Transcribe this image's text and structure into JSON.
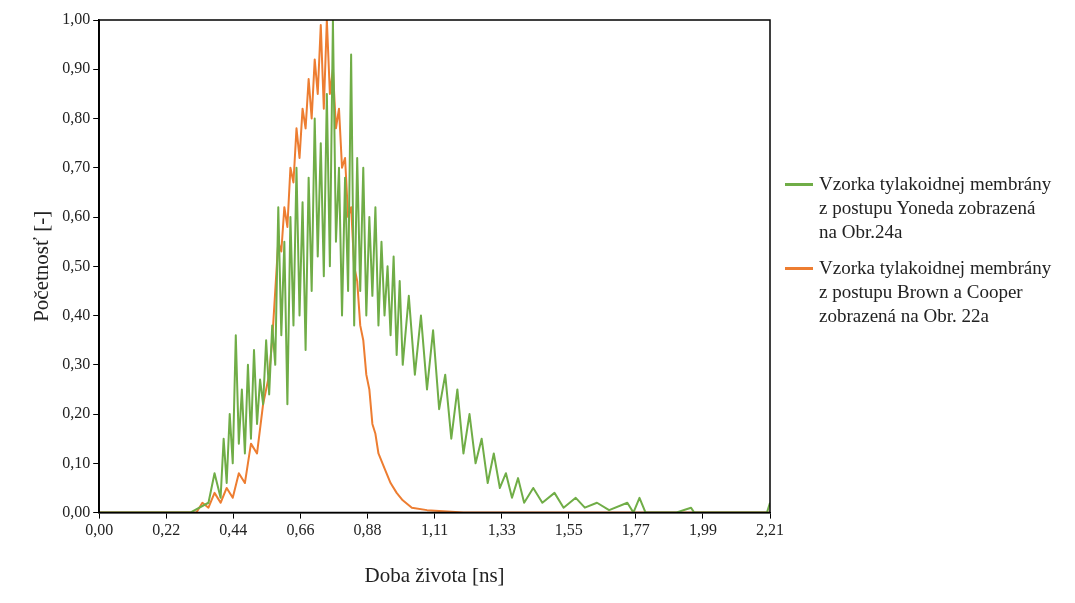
{
  "chart_data": {
    "type": "line",
    "xlabel": "Doba života [ns]",
    "ylabel": "Početnosť [-]",
    "legend": "right",
    "grid": false,
    "marker": "none",
    "line_style": "solid",
    "xlim": [
      0,
      2.21
    ],
    "xticks": [
      {
        "value": 0,
        "label": "0,00"
      },
      {
        "value": 0.221,
        "label": "0,22"
      },
      {
        "value": 0.442,
        "label": "0,44"
      },
      {
        "value": 0.663,
        "label": "0,66"
      },
      {
        "value": 0.884,
        "label": "0,88"
      },
      {
        "value": 1.105,
        "label": "1,11"
      },
      {
        "value": 1.326,
        "label": "1,33"
      },
      {
        "value": 1.547,
        "label": "1,55"
      },
      {
        "value": 1.768,
        "label": "1,77"
      },
      {
        "value": 1.989,
        "label": "1,99"
      },
      {
        "value": 2.21,
        "label": "2,21"
      }
    ],
    "ylim": [
      0,
      1
    ],
    "yticks": [
      {
        "value": 0,
        "label": "0,00"
      },
      {
        "value": 0.1,
        "label": "0,10"
      },
      {
        "value": 0.2,
        "label": "0,20"
      },
      {
        "value": 0.3,
        "label": "0,30"
      },
      {
        "value": 0.4,
        "label": "0,40"
      },
      {
        "value": 0.5,
        "label": "0,50"
      },
      {
        "value": 0.6,
        "label": "0,60"
      },
      {
        "value": 0.7,
        "label": "0,70"
      },
      {
        "value": 0.8,
        "label": "0,80"
      },
      {
        "value": 0.9,
        "label": "0,90"
      },
      {
        "value": 1,
        "label": "1,00"
      }
    ],
    "series": [
      {
        "name": "Vzorka tylakoidnej membrány z postupu Yoneda zobrazená na Obr.24a",
        "color": "#70ad47",
        "x": [
          0,
          0.3,
          0.36,
          0.38,
          0.4,
          0.41,
          0.42,
          0.43,
          0.44,
          0.45,
          0.46,
          0.47,
          0.48,
          0.49,
          0.5,
          0.51,
          0.52,
          0.53,
          0.54,
          0.55,
          0.56,
          0.57,
          0.58,
          0.59,
          0.6,
          0.61,
          0.62,
          0.63,
          0.64,
          0.65,
          0.66,
          0.67,
          0.68,
          0.69,
          0.7,
          0.71,
          0.72,
          0.73,
          0.74,
          0.75,
          0.76,
          0.77,
          0.78,
          0.79,
          0.8,
          0.81,
          0.82,
          0.83,
          0.84,
          0.85,
          0.86,
          0.87,
          0.88,
          0.89,
          0.9,
          0.91,
          0.92,
          0.93,
          0.94,
          0.95,
          0.96,
          0.97,
          0.98,
          0.99,
          1.0,
          1.02,
          1.04,
          1.06,
          1.08,
          1.1,
          1.12,
          1.14,
          1.16,
          1.18,
          1.2,
          1.22,
          1.24,
          1.26,
          1.28,
          1.3,
          1.32,
          1.34,
          1.36,
          1.38,
          1.4,
          1.43,
          1.46,
          1.5,
          1.53,
          1.57,
          1.6,
          1.64,
          1.68,
          1.74,
          1.76,
          1.78,
          1.8,
          1.9,
          1.95,
          1.96,
          2.2,
          2.21
        ],
        "values": [
          0,
          0,
          0.02,
          0.08,
          0.03,
          0.15,
          0.06,
          0.2,
          0.1,
          0.36,
          0.14,
          0.25,
          0.12,
          0.3,
          0.15,
          0.33,
          0.18,
          0.27,
          0.22,
          0.35,
          0.24,
          0.38,
          0.3,
          0.62,
          0.36,
          0.55,
          0.22,
          0.6,
          0.38,
          0.7,
          0.4,
          0.63,
          0.33,
          0.68,
          0.45,
          0.8,
          0.52,
          0.75,
          0.48,
          0.85,
          0.5,
          1.0,
          0.55,
          0.7,
          0.4,
          0.68,
          0.45,
          0.93,
          0.38,
          0.72,
          0.45,
          0.7,
          0.4,
          0.6,
          0.44,
          0.62,
          0.38,
          0.55,
          0.4,
          0.5,
          0.36,
          0.52,
          0.32,
          0.47,
          0.3,
          0.44,
          0.28,
          0.4,
          0.25,
          0.37,
          0.21,
          0.28,
          0.15,
          0.25,
          0.12,
          0.2,
          0.1,
          0.15,
          0.06,
          0.12,
          0.05,
          0.08,
          0.03,
          0.07,
          0.02,
          0.05,
          0.02,
          0.04,
          0.01,
          0.03,
          0.01,
          0.02,
          0.005,
          0.02,
          0,
          0.03,
          0,
          0,
          0.01,
          0,
          0,
          0.02
        ]
      },
      {
        "name": "Vzorka tylakoidnej membrány z postupu Brown a Cooper zobrazená na Obr. 22a",
        "color": "#ed7d31",
        "x": [
          0,
          0.32,
          0.34,
          0.36,
          0.38,
          0.4,
          0.42,
          0.44,
          0.46,
          0.48,
          0.5,
          0.52,
          0.54,
          0.56,
          0.57,
          0.58,
          0.59,
          0.6,
          0.61,
          0.62,
          0.63,
          0.64,
          0.65,
          0.66,
          0.67,
          0.68,
          0.69,
          0.7,
          0.71,
          0.72,
          0.73,
          0.74,
          0.75,
          0.76,
          0.77,
          0.78,
          0.79,
          0.8,
          0.81,
          0.82,
          0.83,
          0.84,
          0.85,
          0.86,
          0.87,
          0.88,
          0.89,
          0.9,
          0.91,
          0.92,
          0.94,
          0.96,
          0.98,
          1.0,
          1.03,
          1.08,
          1.2,
          2.21
        ],
        "values": [
          0,
          0,
          0.02,
          0.01,
          0.04,
          0.02,
          0.05,
          0.03,
          0.08,
          0.06,
          0.14,
          0.12,
          0.22,
          0.28,
          0.35,
          0.45,
          0.55,
          0.53,
          0.62,
          0.58,
          0.7,
          0.67,
          0.78,
          0.72,
          0.82,
          0.78,
          0.88,
          0.8,
          0.92,
          0.85,
          0.99,
          0.82,
          1.0,
          0.85,
          0.9,
          0.78,
          0.82,
          0.7,
          0.72,
          0.6,
          0.62,
          0.5,
          0.47,
          0.38,
          0.35,
          0.28,
          0.25,
          0.18,
          0.16,
          0.12,
          0.09,
          0.06,
          0.04,
          0.025,
          0.01,
          0.005,
          0,
          0
        ]
      }
    ]
  }
}
